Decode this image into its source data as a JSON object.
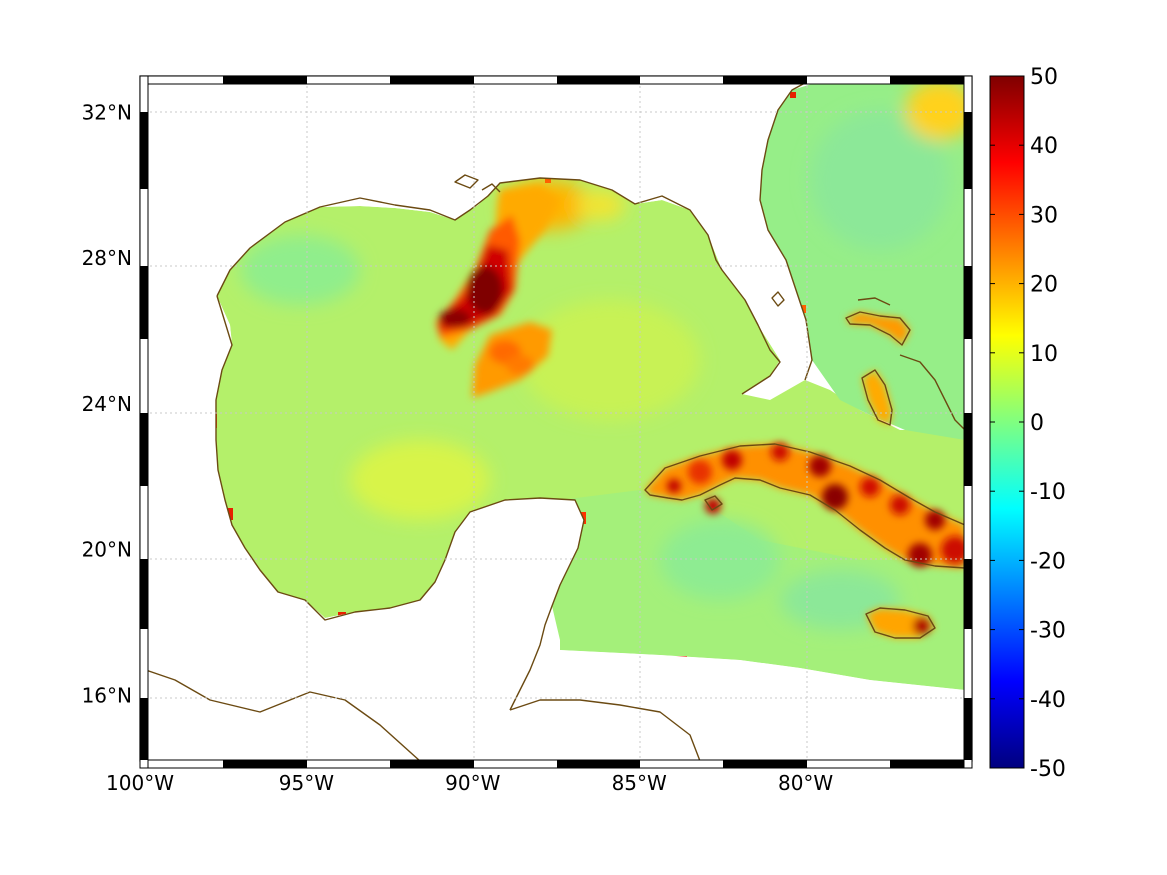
{
  "chart_data": {
    "type": "heatmap",
    "map_region": "Gulf of Mexico and western Caribbean",
    "x_axis": {
      "range": [
        -100,
        -75
      ],
      "ticks": [
        -100,
        -95,
        -90,
        -85,
        -80
      ],
      "tick_labels": [
        "100°W",
        "95°W",
        "90°W",
        "85°W",
        "80°W"
      ]
    },
    "y_axis": {
      "range": [
        14.2,
        33
      ],
      "ticks": [
        16,
        20,
        24,
        28,
        32
      ],
      "tick_labels": [
        "16°N",
        "20°N",
        "24°N",
        "28°N",
        "32°N"
      ]
    },
    "grid": true,
    "colorbar": {
      "colormap": "jet",
      "range": [
        -50,
        50
      ],
      "ticks": [
        50,
        40,
        30,
        20,
        10,
        0,
        -10,
        -20,
        -30,
        -40,
        -50
      ],
      "tick_labels": [
        "50",
        "40",
        "30",
        "20",
        "10",
        "0",
        "-10",
        "-20",
        "-30",
        "-40",
        "-50"
      ]
    },
    "colors": {
      "coastline": "#6b4a12",
      "ocean_background_value": 4,
      "missing_data": "#ffffff"
    },
    "features": [
      {
        "name": "mississippi-plume",
        "lon": -89.9,
        "lat": 27.6,
        "value": 50
      },
      {
        "name": "plume-west-lobe",
        "lon": -90.8,
        "lat": 26.7,
        "value": 47
      },
      {
        "name": "plume-south-lobe",
        "lon": -89.2,
        "lat": 25.5,
        "value": 28
      },
      {
        "name": "plume-east-arm",
        "lon": -88.2,
        "lat": 29.3,
        "value": 20
      },
      {
        "name": "cuba",
        "lon": -80,
        "lat": 22,
        "value": 32
      },
      {
        "name": "jamaica",
        "lon": -77.3,
        "lat": 18.1,
        "value": 30
      },
      {
        "name": "bahamas-andros",
        "lon": -77.9,
        "lat": 24.5,
        "value": 25
      },
      {
        "name": "east-coast-shelf",
        "lon": -76,
        "lat": 32.4,
        "value": 15
      }
    ]
  }
}
